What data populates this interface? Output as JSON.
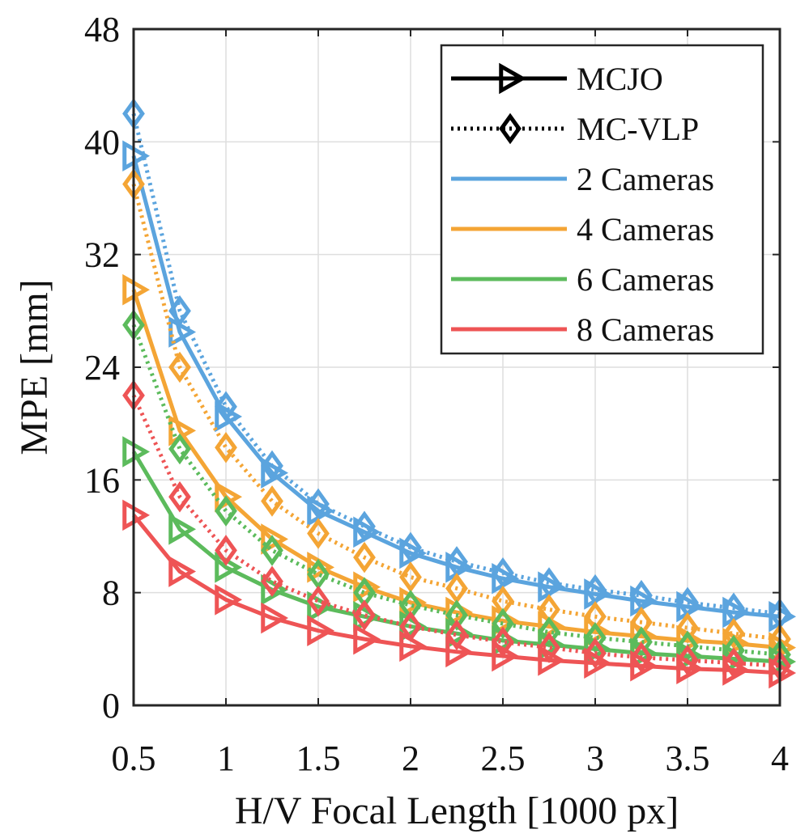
{
  "chart_data": {
    "type": "line",
    "title": "",
    "xlabel": "H/V Focal Length [1000 px]",
    "ylabel": "MPE [mm]",
    "xlim": [
      0.5,
      4
    ],
    "ylim": [
      0,
      48
    ],
    "x_ticks": [
      "0.5",
      "1",
      "1.5",
      "2",
      "2.5",
      "3",
      "3.5",
      "4"
    ],
    "y_ticks": [
      "0",
      "8",
      "16",
      "24",
      "32",
      "40",
      "48"
    ],
    "grid": true,
    "legend_position": "top-right",
    "x": [
      0.5,
      0.75,
      1.0,
      1.25,
      1.5,
      1.75,
      2.0,
      2.25,
      2.5,
      2.75,
      3.0,
      3.25,
      3.5,
      3.75,
      4.0
    ],
    "legend": [
      {
        "label": "MCJO",
        "line": "solid",
        "marker": "triangle-right",
        "color": "#000000"
      },
      {
        "label": "MC-VLP",
        "line": "dotted",
        "marker": "diamond",
        "color": "#000000"
      },
      {
        "label": "2 Cameras",
        "line": "solid",
        "marker": "none",
        "color": "#5ba4de"
      },
      {
        "label": "4 Cameras",
        "line": "solid",
        "marker": "none",
        "color": "#f4a535"
      },
      {
        "label": "6 Cameras",
        "line": "solid",
        "marker": "none",
        "color": "#5cbb5c"
      },
      {
        "label": "8 Cameras",
        "line": "solid",
        "marker": "none",
        "color": "#ee5455"
      }
    ],
    "series": [
      {
        "method": "MCJO",
        "cameras": 2,
        "color": "#5ba4de",
        "style": "solid",
        "marker": "triangle-right",
        "values": [
          39.0,
          26.5,
          20.5,
          16.5,
          13.8,
          12.3,
          10.8,
          9.8,
          9.0,
          8.4,
          7.9,
          7.4,
          7.0,
          6.6,
          6.3
        ]
      },
      {
        "method": "MC-VLP",
        "cameras": 2,
        "color": "#5ba4de",
        "style": "dotted",
        "marker": "diamond",
        "values": [
          42.0,
          28.0,
          21.2,
          17.0,
          14.3,
          12.7,
          11.2,
          10.2,
          9.4,
          8.7,
          8.2,
          7.8,
          7.3,
          6.9,
          6.5
        ]
      },
      {
        "method": "MCJO",
        "cameras": 4,
        "color": "#f4a535",
        "style": "solid",
        "marker": "triangle-right",
        "values": [
          29.5,
          19.5,
          14.8,
          11.8,
          9.8,
          8.4,
          7.3,
          6.6,
          6.0,
          5.6,
          5.2,
          4.9,
          4.6,
          4.4,
          4.1
        ]
      },
      {
        "method": "MC-VLP",
        "cameras": 4,
        "color": "#f4a535",
        "style": "dotted",
        "marker": "diamond",
        "values": [
          37.0,
          24.0,
          18.3,
          14.5,
          12.2,
          10.5,
          9.1,
          8.3,
          7.4,
          6.8,
          6.3,
          5.9,
          5.5,
          5.1,
          4.7
        ]
      },
      {
        "method": "MCJO",
        "cameras": 6,
        "color": "#5cbb5c",
        "style": "solid",
        "marker": "triangle-right",
        "values": [
          18.0,
          12.5,
          9.8,
          8.2,
          7.0,
          6.3,
          5.6,
          5.1,
          4.6,
          4.3,
          4.0,
          3.7,
          3.5,
          3.3,
          3.1
        ]
      },
      {
        "method": "MC-VLP",
        "cameras": 6,
        "color": "#5cbb5c",
        "style": "dotted",
        "marker": "diamond",
        "values": [
          27.0,
          18.2,
          13.8,
          11.0,
          9.3,
          8.0,
          7.1,
          6.4,
          5.8,
          5.2,
          4.8,
          4.5,
          4.2,
          3.9,
          3.6
        ]
      },
      {
        "method": "MCJO",
        "cameras": 8,
        "color": "#ee5455",
        "style": "solid",
        "marker": "triangle-right",
        "values": [
          13.5,
          9.5,
          7.5,
          6.2,
          5.3,
          4.7,
          4.2,
          3.8,
          3.5,
          3.2,
          3.0,
          2.8,
          2.6,
          2.5,
          2.3
        ]
      },
      {
        "method": "MC-VLP",
        "cameras": 8,
        "color": "#ee5455",
        "style": "dotted",
        "marker": "diamond",
        "values": [
          22.0,
          14.8,
          11.0,
          8.8,
          7.4,
          6.4,
          5.6,
          5.0,
          4.5,
          4.1,
          3.7,
          3.4,
          3.2,
          3.0,
          2.8
        ]
      }
    ]
  }
}
